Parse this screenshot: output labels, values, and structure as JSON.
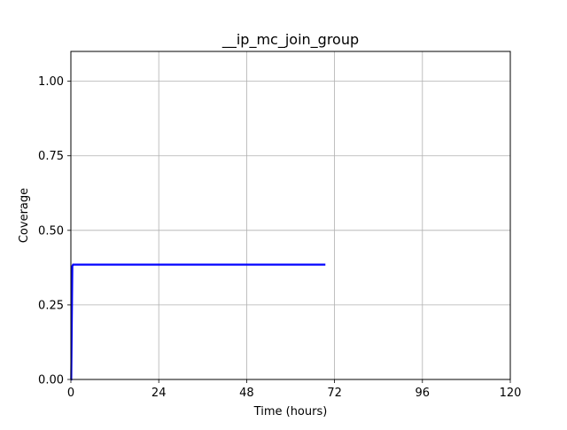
{
  "chart_data": {
    "type": "line",
    "title": "__ip_mc_join_group",
    "xlabel": "Time (hours)",
    "ylabel": "Coverage",
    "xlim": [
      0,
      120
    ],
    "ylim": [
      0,
      1.1
    ],
    "xticks": [
      0,
      24,
      48,
      72,
      96,
      120
    ],
    "yticks": [
      0.0,
      0.25,
      0.5,
      0.75,
      1.0
    ],
    "xtick_labels": [
      "0",
      "24",
      "48",
      "72",
      "96",
      "120"
    ],
    "ytick_labels": [
      "0.00",
      "0.25",
      "0.50",
      "0.75",
      "1.00"
    ],
    "grid": true,
    "legend": "none",
    "series": [
      {
        "color": "#0000ff",
        "x": [
          0,
          0.1,
          0.4,
          0.6,
          1.0,
          69.5
        ],
        "y": [
          0.0,
          0.0,
          0.38,
          0.385,
          0.385,
          0.385
        ]
      }
    ]
  }
}
